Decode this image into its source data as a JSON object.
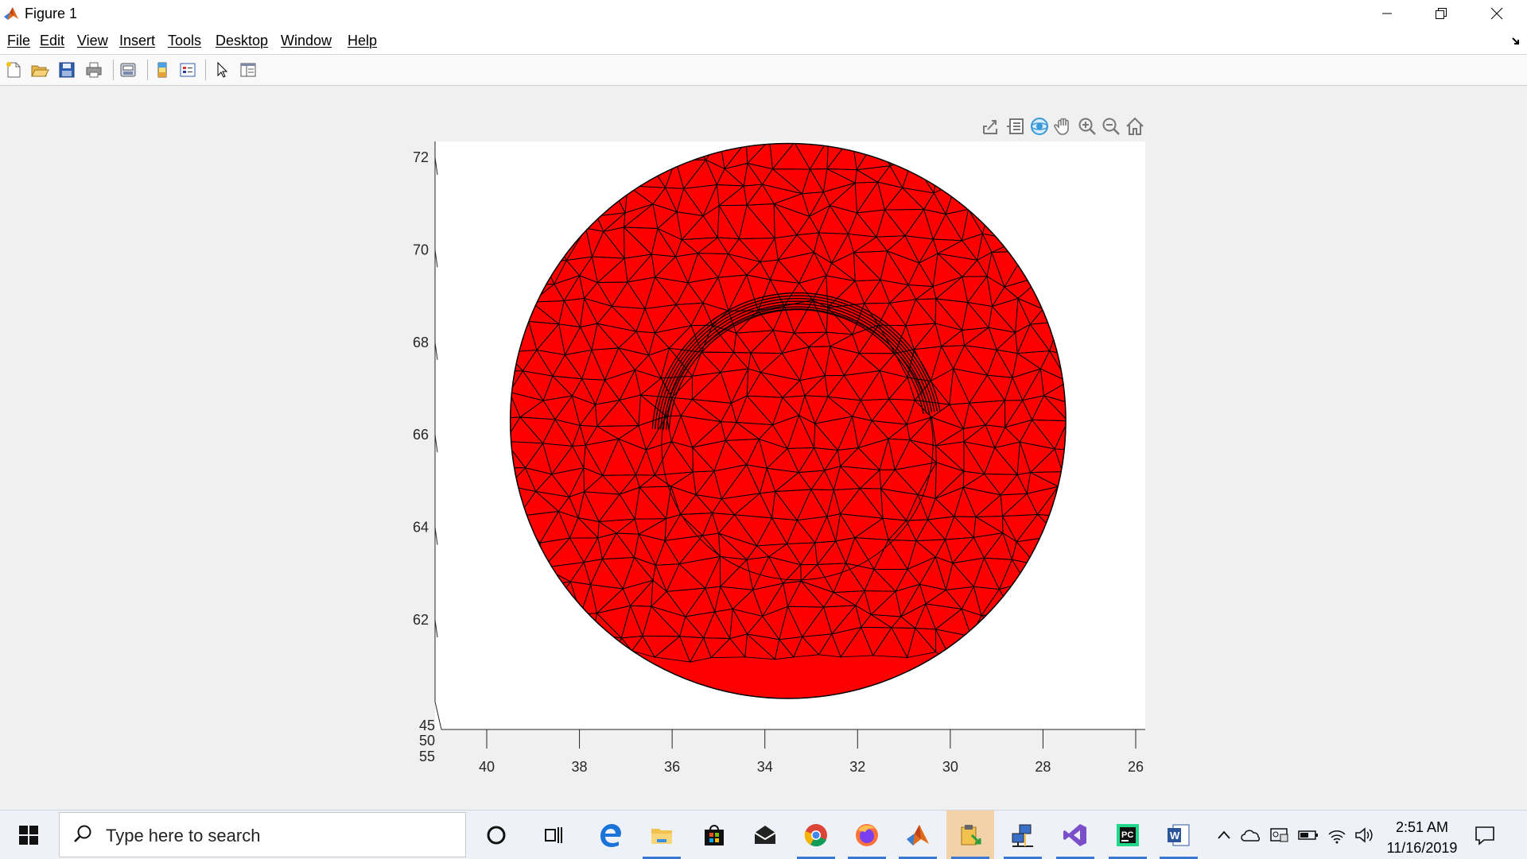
{
  "window": {
    "title": "Figure 1",
    "controls": [
      "minimize",
      "restore",
      "close"
    ]
  },
  "menu": [
    "File",
    "Edit",
    "View",
    "Insert",
    "Tools",
    "Desktop",
    "Window",
    "Help"
  ],
  "toolbar": {
    "buttons": [
      "new-figure-icon",
      "open-file-icon",
      "save-figure-icon",
      "print-figure-icon",
      "print-preview-icon",
      "insert-colorbar-icon",
      "insert-legend-icon",
      "edit-plot-icon",
      "property-inspector-icon"
    ]
  },
  "axes_toolbar": [
    "export-icon",
    "brush-data-icon",
    "rotate-3d-icon",
    "pan-icon",
    "zoom-in-icon",
    "zoom-out-icon",
    "restore-view-icon"
  ],
  "chart_data": {
    "type": "mesh",
    "description_shown": "red triangulated mesh surface viewed from above",
    "face_color": "#ff0000",
    "edge_color": "#000000",
    "x_ticks": [
      "40",
      "38",
      "36",
      "34",
      "32",
      "30",
      "28",
      "26"
    ],
    "y_ticks": [
      "72",
      "70",
      "68",
      "66",
      "64",
      "62"
    ],
    "z_ticks": [
      "45",
      "50",
      "55"
    ],
    "xlim": [
      26,
      41
    ],
    "ylim": [
      60.5,
      73
    ],
    "x_reversed": true,
    "outer_circle": {
      "center_x": 33.5,
      "center_y": 66.3,
      "radius": 6.0
    },
    "inner_circle": {
      "center_x": 33.3,
      "center_y": 66.0,
      "radius": 3.0
    }
  },
  "taskbar": {
    "search_placeholder": "Type here to search",
    "apps": [
      "cortana-icon",
      "task-view-icon",
      "edge-icon",
      "file-explorer-icon",
      "store-icon",
      "mail-icon",
      "chrome-icon",
      "firefox-icon",
      "matlab-icon",
      "file-manager-icon",
      "network-app-icon",
      "visual-studio-icon",
      "pycharm-icon",
      "word-icon"
    ],
    "time": "2:51 AM",
    "date": "11/16/2019"
  },
  "colors": {
    "mesh_face": "#ff0000",
    "plot_background": "#ffffff",
    "figure_background": "#f0f0f0"
  }
}
